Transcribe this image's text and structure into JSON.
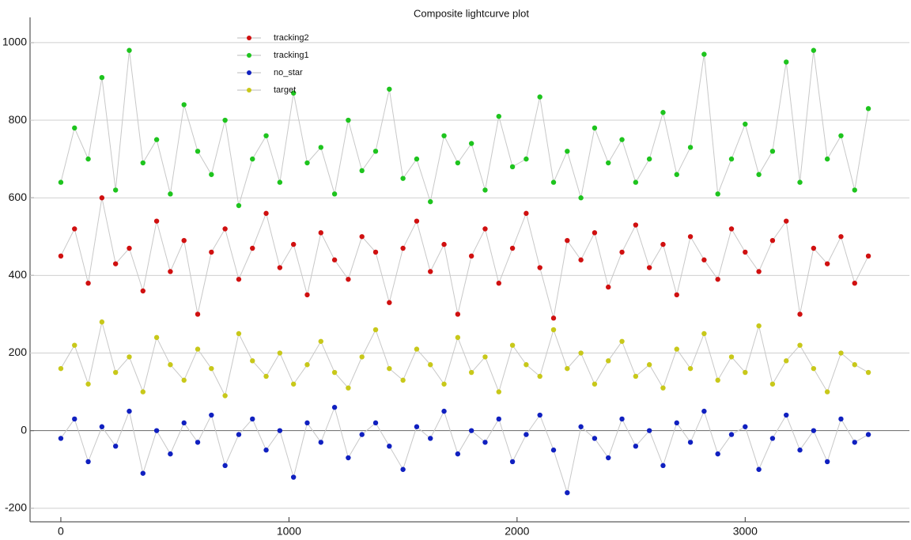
{
  "chart_data": {
    "type": "scatter",
    "title": "Composite lightcurve plot",
    "x": [
      0,
      60,
      120,
      180,
      240,
      300,
      360,
      420,
      480,
      540,
      600,
      660,
      720,
      780,
      840,
      900,
      960,
      1020,
      1080,
      1140,
      1200,
      1260,
      1320,
      1380,
      1440,
      1500,
      1560,
      1620,
      1680,
      1740,
      1800,
      1860,
      1920,
      1980,
      2040,
      2100,
      2160,
      2220,
      2280,
      2340,
      2400,
      2460,
      2520,
      2580,
      2640,
      2700,
      2760,
      2820,
      2880,
      2940,
      3000,
      3060,
      3120,
      3180,
      3240,
      3300,
      3360,
      3420,
      3480,
      3540
    ],
    "series": [
      {
        "name": "tracking2",
        "color": "#d01010",
        "values": [
          450,
          520,
          380,
          600,
          430,
          470,
          360,
          540,
          410,
          490,
          300,
          460,
          520,
          390,
          470,
          560,
          420,
          480,
          350,
          510,
          440,
          390,
          500,
          460,
          330,
          470,
          540,
          410,
          480,
          300,
          450,
          520,
          380,
          470,
          560,
          420,
          290,
          490,
          440,
          510,
          370,
          460,
          530,
          420,
          480,
          350,
          500,
          440,
          390,
          520,
          460,
          410,
          490,
          540,
          300,
          470,
          430,
          500,
          380,
          450
        ]
      },
      {
        "name": "tracking1",
        "color": "#1ec41e",
        "values": [
          640,
          780,
          700,
          910,
          620,
          980,
          690,
          750,
          610,
          840,
          720,
          660,
          800,
          580,
          700,
          760,
          640,
          870,
          690,
          730,
          610,
          800,
          670,
          720,
          880,
          650,
          700,
          590,
          760,
          690,
          740,
          620,
          810,
          680,
          700,
          860,
          640,
          720,
          600,
          780,
          690,
          750,
          640,
          700,
          820,
          660,
          730,
          970,
          610,
          700,
          790,
          660,
          720,
          950,
          640,
          980,
          700,
          760,
          620,
          830
        ]
      },
      {
        "name": "no_star",
        "color": "#1020c0",
        "values": [
          -20,
          30,
          -80,
          10,
          -40,
          50,
          -110,
          0,
          -60,
          20,
          -30,
          40,
          -90,
          -10,
          30,
          -50,
          0,
          -120,
          20,
          -30,
          60,
          -70,
          -10,
          20,
          -40,
          -100,
          10,
          -20,
          50,
          -60,
          0,
          -30,
          30,
          -80,
          -10,
          40,
          -50,
          -160,
          10,
          -20,
          -70,
          30,
          -40,
          0,
          -90,
          20,
          -30,
          50,
          -60,
          -10,
          10,
          -100,
          -20,
          40,
          -50,
          0,
          -80,
          30,
          -30,
          -10
        ]
      },
      {
        "name": "target",
        "color": "#c8c81a",
        "values": [
          160,
          220,
          120,
          280,
          150,
          190,
          100,
          240,
          170,
          130,
          210,
          160,
          90,
          250,
          180,
          140,
          200,
          120,
          170,
          230,
          150,
          110,
          190,
          260,
          160,
          130,
          210,
          170,
          120,
          240,
          150,
          190,
          100,
          220,
          170,
          140,
          260,
          160,
          200,
          120,
          180,
          230,
          140,
          170,
          110,
          210,
          160,
          250,
          130,
          190,
          150,
          270,
          120,
          180,
          220,
          160,
          100,
          200,
          170,
          150
        ]
      }
    ],
    "xlim": [
      -135,
      3720
    ],
    "ylim": [
      -235,
      1065
    ],
    "xticks": [
      0,
      1000,
      2000,
      3000
    ],
    "yticks": [
      -200,
      0,
      200,
      400,
      600,
      800,
      1000
    ],
    "grid": true,
    "legend": "top-left",
    "line_color": "#c8c8c8"
  }
}
